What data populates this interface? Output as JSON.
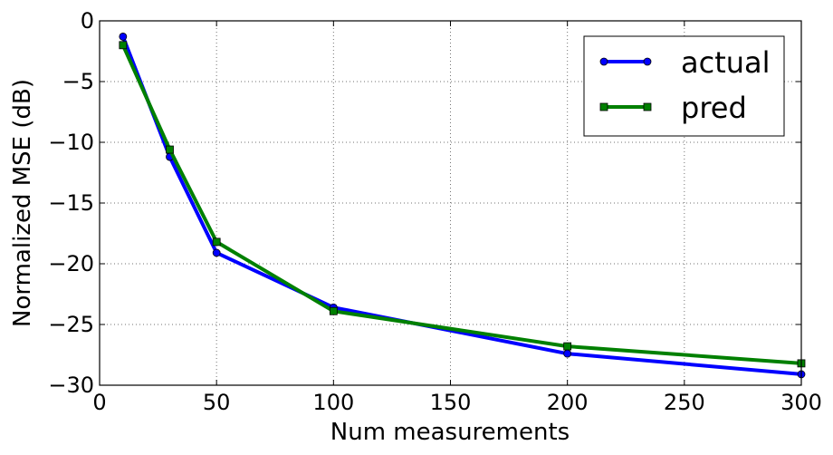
{
  "chart_data": {
    "type": "line",
    "xlabel": "Num measurements",
    "ylabel": "Normalized MSE (dB)",
    "xlim": [
      0,
      300
    ],
    "ylim": [
      -30,
      0
    ],
    "xticks": [
      0,
      50,
      100,
      150,
      200,
      250,
      300
    ],
    "yticks": [
      0,
      -5,
      -10,
      -15,
      -20,
      -25,
      -30
    ],
    "xtick_labels": [
      "0",
      "50",
      "100",
      "150",
      "200",
      "250",
      "300"
    ],
    "ytick_labels": [
      "0",
      "−5",
      "−10",
      "−15",
      "−20",
      "−25",
      "−30"
    ],
    "grid": true,
    "legend_position": "top-right",
    "series": [
      {
        "name": "actual",
        "color": "#0000ff",
        "marker": "circle",
        "x": [
          10,
          30,
          50,
          100,
          200,
          300
        ],
        "y": [
          -1.3,
          -11.2,
          -19.1,
          -23.6,
          -27.4,
          -29.1
        ]
      },
      {
        "name": "pred",
        "color": "#008000",
        "marker": "square",
        "x": [
          10,
          30,
          50,
          100,
          200,
          300
        ],
        "y": [
          -2.0,
          -10.6,
          -18.2,
          -23.9,
          -26.8,
          -28.2
        ]
      }
    ]
  }
}
